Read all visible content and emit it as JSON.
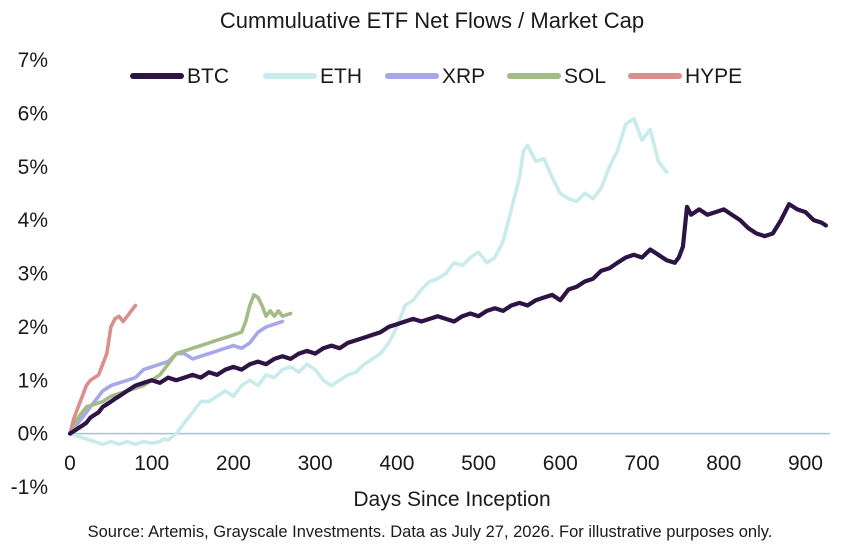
{
  "chart_data": {
    "type": "line",
    "title": "Cummuluative ETF Net Flows / Market Cap",
    "xlabel": "Days Since Inception",
    "ylabel": "",
    "xlim": [
      0,
      930
    ],
    "ylim": [
      -1,
      7
    ],
    "x_ticks": [
      0,
      100,
      200,
      300,
      400,
      500,
      600,
      700,
      800,
      900
    ],
    "y_ticks": [
      -1,
      0,
      1,
      2,
      3,
      4,
      5,
      6,
      7
    ],
    "y_tick_labels": [
      "-1%",
      "0%",
      "1%",
      "2%",
      "3%",
      "4%",
      "5%",
      "6%",
      "7%"
    ],
    "zero_line": true,
    "grid": false,
    "legend_position": "top",
    "source": "Source: Artemis, Grayscale Investments. Data as July 27, 2026. For illustrative purposes only.",
    "series": [
      {
        "name": "BTC",
        "color": "#2d1445",
        "x": [
          0,
          5,
          10,
          15,
          20,
          25,
          30,
          35,
          40,
          45,
          50,
          55,
          60,
          65,
          70,
          80,
          90,
          100,
          110,
          120,
          130,
          140,
          150,
          160,
          170,
          180,
          190,
          200,
          210,
          220,
          230,
          240,
          250,
          260,
          270,
          280,
          290,
          300,
          310,
          320,
          330,
          340,
          350,
          360,
          370,
          380,
          390,
          400,
          410,
          420,
          430,
          440,
          450,
          460,
          470,
          480,
          490,
          500,
          510,
          520,
          530,
          540,
          550,
          560,
          570,
          580,
          590,
          600,
          610,
          620,
          630,
          640,
          650,
          660,
          670,
          680,
          690,
          700,
          710,
          720,
          730,
          740,
          745,
          750,
          755,
          760,
          770,
          780,
          790,
          800,
          810,
          820,
          830,
          840,
          850,
          860,
          870,
          880,
          890,
          900,
          910,
          920,
          925
        ],
        "y": [
          0.0,
          0.05,
          0.1,
          0.15,
          0.2,
          0.3,
          0.35,
          0.4,
          0.5,
          0.55,
          0.6,
          0.65,
          0.7,
          0.75,
          0.8,
          0.9,
          0.95,
          1.0,
          0.95,
          1.05,
          1.0,
          1.05,
          1.1,
          1.05,
          1.15,
          1.1,
          1.2,
          1.25,
          1.2,
          1.3,
          1.35,
          1.3,
          1.4,
          1.45,
          1.4,
          1.5,
          1.55,
          1.5,
          1.6,
          1.65,
          1.6,
          1.7,
          1.75,
          1.8,
          1.85,
          1.9,
          2.0,
          2.05,
          2.1,
          2.15,
          2.1,
          2.15,
          2.2,
          2.15,
          2.1,
          2.2,
          2.25,
          2.2,
          2.3,
          2.35,
          2.3,
          2.4,
          2.45,
          2.4,
          2.5,
          2.55,
          2.6,
          2.5,
          2.7,
          2.75,
          2.85,
          2.9,
          3.05,
          3.1,
          3.2,
          3.3,
          3.35,
          3.3,
          3.45,
          3.35,
          3.25,
          3.2,
          3.3,
          3.5,
          4.25,
          4.1,
          4.2,
          4.1,
          4.15,
          4.2,
          4.1,
          4.0,
          3.85,
          3.75,
          3.7,
          3.75,
          4.0,
          4.3,
          4.2,
          4.15,
          4.0,
          3.95,
          3.9
        ]
      },
      {
        "name": "ETH",
        "color": "#c8ecec",
        "x": [
          0,
          10,
          20,
          30,
          40,
          50,
          60,
          70,
          80,
          90,
          100,
          110,
          115,
          120,
          130,
          140,
          150,
          160,
          170,
          180,
          190,
          200,
          210,
          220,
          230,
          240,
          250,
          260,
          270,
          280,
          290,
          300,
          310,
          320,
          330,
          340,
          350,
          360,
          370,
          380,
          390,
          400,
          410,
          420,
          430,
          440,
          450,
          460,
          470,
          480,
          490,
          500,
          510,
          520,
          530,
          540,
          550,
          555,
          560,
          570,
          580,
          590,
          600,
          610,
          620,
          630,
          640,
          650,
          660,
          670,
          680,
          690,
          700,
          710,
          720,
          730
        ],
        "y": [
          0.0,
          -0.05,
          -0.1,
          -0.15,
          -0.2,
          -0.15,
          -0.2,
          -0.15,
          -0.2,
          -0.15,
          -0.18,
          -0.15,
          -0.1,
          -0.12,
          0.0,
          0.2,
          0.4,
          0.6,
          0.6,
          0.7,
          0.8,
          0.7,
          0.9,
          1.0,
          0.9,
          1.1,
          1.05,
          1.2,
          1.25,
          1.15,
          1.3,
          1.2,
          1.0,
          0.9,
          1.0,
          1.1,
          1.15,
          1.3,
          1.4,
          1.5,
          1.7,
          2.0,
          2.4,
          2.5,
          2.7,
          2.85,
          2.9,
          3.0,
          3.2,
          3.15,
          3.3,
          3.4,
          3.2,
          3.3,
          3.6,
          4.2,
          4.8,
          5.3,
          5.4,
          5.1,
          5.15,
          4.8,
          4.5,
          4.4,
          4.35,
          4.5,
          4.4,
          4.6,
          5.0,
          5.3,
          5.8,
          5.9,
          5.5,
          5.7,
          5.1,
          4.9
        ]
      },
      {
        "name": "XRP",
        "color": "#a7a7ec",
        "x": [
          0,
          5,
          10,
          15,
          20,
          25,
          30,
          35,
          40,
          45,
          50,
          60,
          70,
          80,
          90,
          100,
          110,
          120,
          130,
          140,
          150,
          160,
          170,
          180,
          190,
          200,
          210,
          220,
          230,
          240,
          250,
          260
        ],
        "y": [
          0.0,
          0.1,
          0.2,
          0.3,
          0.4,
          0.5,
          0.6,
          0.7,
          0.8,
          0.85,
          0.9,
          0.95,
          1.0,
          1.05,
          1.2,
          1.25,
          1.3,
          1.35,
          1.5,
          1.5,
          1.4,
          1.45,
          1.5,
          1.55,
          1.6,
          1.65,
          1.6,
          1.7,
          1.9,
          2.0,
          2.05,
          2.1
        ]
      },
      {
        "name": "SOL",
        "color": "#a3bb86",
        "x": [
          0,
          10,
          20,
          30,
          40,
          50,
          60,
          70,
          80,
          90,
          100,
          110,
          120,
          130,
          140,
          150,
          160,
          170,
          180,
          190,
          200,
          210,
          215,
          220,
          225,
          230,
          235,
          240,
          245,
          250,
          255,
          260,
          270
        ],
        "y": [
          0.0,
          0.3,
          0.5,
          0.55,
          0.6,
          0.7,
          0.75,
          0.8,
          0.85,
          0.9,
          1.0,
          1.1,
          1.3,
          1.5,
          1.55,
          1.6,
          1.65,
          1.7,
          1.75,
          1.8,
          1.85,
          1.9,
          2.1,
          2.4,
          2.6,
          2.55,
          2.4,
          2.2,
          2.3,
          2.2,
          2.3,
          2.2,
          2.25
        ]
      },
      {
        "name": "HYPE",
        "color": "#d98f8c",
        "x": [
          0,
          5,
          10,
          15,
          20,
          25,
          30,
          35,
          40,
          45,
          50,
          55,
          60,
          65,
          70,
          75,
          80
        ],
        "y": [
          0.0,
          0.3,
          0.5,
          0.7,
          0.9,
          1.0,
          1.05,
          1.1,
          1.3,
          1.5,
          2.0,
          2.15,
          2.2,
          2.1,
          2.2,
          2.3,
          2.4
        ]
      }
    ]
  }
}
